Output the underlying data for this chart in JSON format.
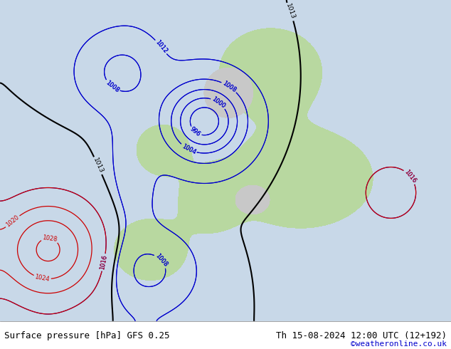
{
  "title_left": "Surface pressure [hPa] GFS 0.25",
  "title_right": "Th 15-08-2024 12:00 UTC (12+192)",
  "credit": "©weatheronline.co.uk",
  "bg_ocean": "#c8d8e8",
  "bg_land_green": "#b8d8a0",
  "bg_land_gray": "#c8c8c8",
  "contour_blue": "#0000cc",
  "contour_red": "#cc0000",
  "contour_black": "#000000",
  "bottom_bar_color": "#e8e8e8",
  "text_color_left": "#000000",
  "text_color_right": "#000000",
  "credit_color": "#0000cc",
  "figsize": [
    6.34,
    4.9
  ],
  "dpi": 100
}
